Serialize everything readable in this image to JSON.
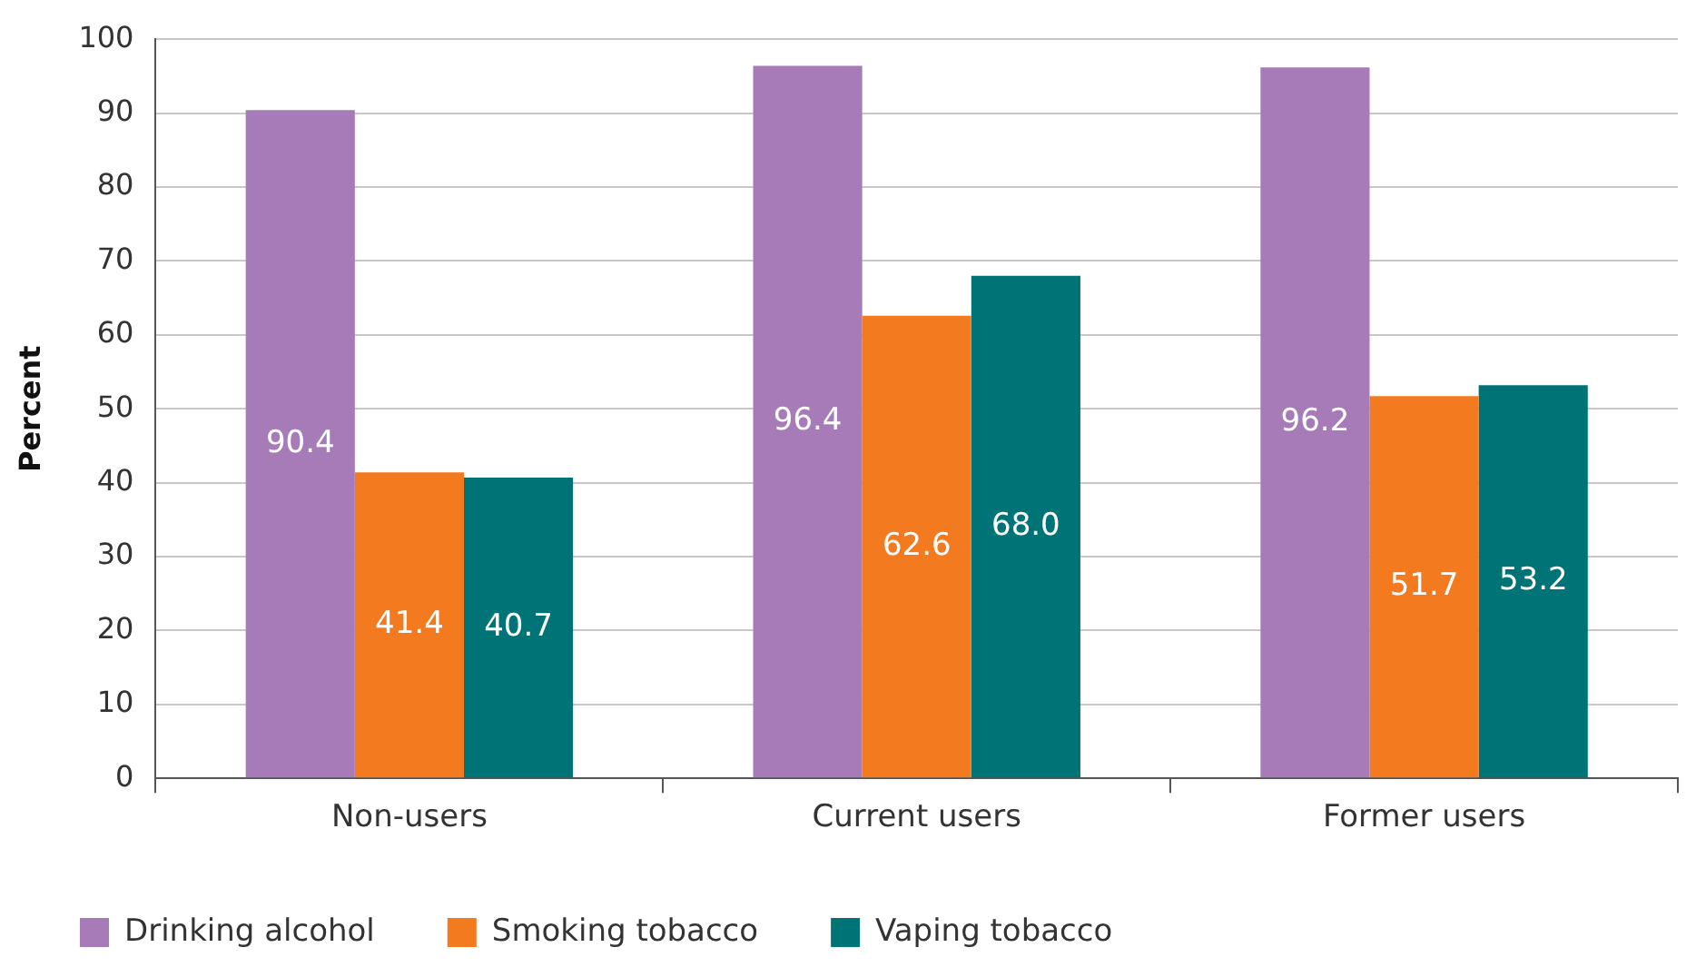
{
  "chart_data": {
    "type": "bar",
    "ylabel": "Percent",
    "categories": [
      "Non-users",
      "Current users",
      "Former users"
    ],
    "series": [
      {
        "name": "Drinking alcohol",
        "color": "#a77bb7",
        "values": [
          90.4,
          96.4,
          96.2
        ],
        "value_labels": [
          "90.4",
          "96.4",
          "96.2"
        ]
      },
      {
        "name": "Smoking tobacco",
        "color": "#f47a20",
        "values": [
          41.4,
          62.6,
          51.7
        ],
        "value_labels": [
          "41.4",
          "62.6",
          "51.7"
        ]
      },
      {
        "name": "Vaping tobacco",
        "color": "#007377",
        "values": [
          40.7,
          68.0,
          53.2
        ],
        "value_labels": [
          "40.7",
          "68.0",
          "53.2"
        ]
      }
    ],
    "ylim": [
      0,
      100
    ],
    "yticks": [
      0,
      10,
      20,
      30,
      40,
      50,
      60,
      70,
      80,
      90,
      100
    ],
    "grid": "y",
    "legend": "bottom left"
  }
}
